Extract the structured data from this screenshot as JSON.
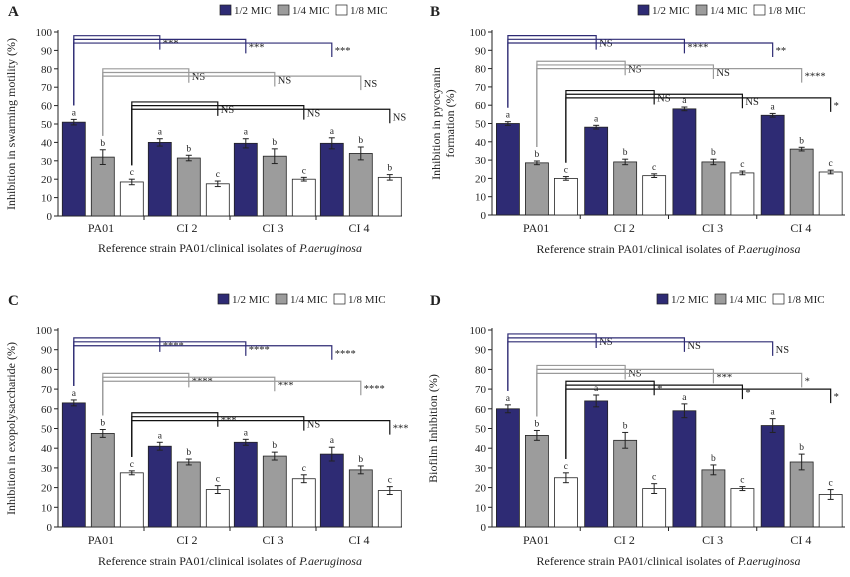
{
  "colors": {
    "half_mic": "#2e2b74",
    "quarter_mic": "#9c9c9c",
    "eighth_mic": "#ffffff",
    "bar_stroke": "#222222",
    "bracket_blue": "#2e2b74",
    "bracket_gray": "#9a9a9a",
    "bracket_black": "#111111"
  },
  "chart_data": [
    {
      "panel": "A",
      "type": "bar",
      "ylabel": "Inhibition in swarming motility (%)",
      "xlabel": "Reference strain PA01/clinical isolates of P.aeruginosa",
      "xlabel_main": "Reference strain PA01/clinical isolates of ",
      "xlabel_italic": "P.aeruginosa",
      "ylim": [
        0,
        100
      ],
      "yticks": [
        "0",
        "10",
        "20",
        "30",
        "40",
        "50",
        "60",
        "70",
        "80",
        "90",
        "100"
      ],
      "categories": [
        "PA01",
        "CI 2",
        "CI 3",
        "CI 4"
      ],
      "legend": [
        "1/2 MIC",
        "1/4 MIC",
        "1/8 MIC"
      ],
      "series": [
        {
          "name": "1/2 MIC",
          "values": [
            51,
            40,
            39.5,
            39.5
          ],
          "errors": [
            1.5,
            2,
            2.5,
            3
          ],
          "letters": [
            "a",
            "a",
            "a",
            "a"
          ]
        },
        {
          "name": "1/4 MIC",
          "values": [
            32,
            31.5,
            32.5,
            34
          ],
          "errors": [
            4,
            1.5,
            4,
            3.5
          ],
          "letters": [
            "b",
            "b",
            "b",
            "b"
          ]
        },
        {
          "name": "1/8 MIC",
          "values": [
            18.5,
            17.5,
            20,
            21
          ],
          "errors": [
            1.5,
            1.5,
            1,
            1.5
          ],
          "letters": [
            "c",
            "c",
            "c",
            "b"
          ]
        }
      ],
      "brackets": [
        {
          "series": 0,
          "from": 0,
          "to": 1,
          "level": 98,
          "label": "***"
        },
        {
          "series": 0,
          "from": 0,
          "to": 2,
          "level": 96,
          "label": "***"
        },
        {
          "series": 0,
          "from": 0,
          "to": 3,
          "level": 94,
          "label": "***"
        },
        {
          "series": 1,
          "from": 0,
          "to": 1,
          "level": 80,
          "label": "NS"
        },
        {
          "series": 1,
          "from": 0,
          "to": 2,
          "level": 78,
          "label": "NS"
        },
        {
          "series": 1,
          "from": 0,
          "to": 3,
          "level": 76,
          "label": "NS"
        },
        {
          "series": 2,
          "from": 0,
          "to": 1,
          "level": 62,
          "label": "NS"
        },
        {
          "series": 2,
          "from": 0,
          "to": 2,
          "level": 60,
          "label": "NS"
        },
        {
          "series": 2,
          "from": 0,
          "to": 3,
          "level": 58,
          "label": "NS"
        }
      ]
    },
    {
      "panel": "B",
      "type": "bar",
      "ylabel": "Inhibition in pyocyanin formation (%)",
      "ylabel_lines": [
        "Inhibition in pyocyanin",
        "formation (%)"
      ],
      "xlabel": "Reference strain PA01/clinical isolates of P.aeruginosa",
      "xlabel_main": "Reference strain PA01/clinical isolates of ",
      "xlabel_italic": "P.aeruginosa",
      "ylim": [
        0,
        100
      ],
      "yticks": [
        "0",
        "10",
        "20",
        "30",
        "40",
        "50",
        "60",
        "70",
        "80",
        "90",
        "100"
      ],
      "categories": [
        "PA01",
        "CI 2",
        "CI 3",
        "CI 4"
      ],
      "legend": [
        "1/2 MIC",
        "1/4 MIC",
        "1/8 MIC"
      ],
      "series": [
        {
          "name": "1/2 MIC",
          "values": [
            50,
            48,
            58,
            54.5
          ],
          "errors": [
            1,
            1,
            1,
            1
          ],
          "letters": [
            "a",
            "a",
            "a",
            "a"
          ]
        },
        {
          "name": "1/4 MIC",
          "values": [
            28.5,
            29,
            29,
            36
          ],
          "errors": [
            1,
            1.5,
            1.5,
            1
          ],
          "letters": [
            "b",
            "b",
            "b",
            "b"
          ]
        },
        {
          "name": "1/8 MIC",
          "values": [
            20,
            21.5,
            23,
            23.5
          ],
          "errors": [
            1,
            1,
            1,
            1
          ],
          "letters": [
            "c",
            "c",
            "c",
            "c"
          ]
        }
      ],
      "brackets": [
        {
          "series": 0,
          "from": 0,
          "to": 1,
          "level": 98,
          "label": "NS"
        },
        {
          "series": 0,
          "from": 0,
          "to": 2,
          "level": 96,
          "label": "****"
        },
        {
          "series": 0,
          "from": 0,
          "to": 3,
          "level": 94,
          "label": "**"
        },
        {
          "series": 1,
          "from": 0,
          "to": 1,
          "level": 84,
          "label": "NS"
        },
        {
          "series": 1,
          "from": 0,
          "to": 2,
          "level": 82,
          "label": "NS"
        },
        {
          "series": 1,
          "from": 0,
          "to": 3,
          "level": 80,
          "label": "****"
        },
        {
          "series": 2,
          "from": 0,
          "to": 1,
          "level": 68,
          "label": "NS"
        },
        {
          "series": 2,
          "from": 0,
          "to": 2,
          "level": 66,
          "label": "NS"
        },
        {
          "series": 2,
          "from": 0,
          "to": 3,
          "level": 64,
          "label": "*"
        }
      ]
    },
    {
      "panel": "C",
      "type": "bar",
      "ylabel": "Inhibition in exopolysaccharide (%)",
      "xlabel": "Reference strain PA01/clinical isolates of P.aeruginosa",
      "xlabel_main": "Reference strain PA01/clinical isolates of ",
      "xlabel_italic": "P.aeruginosa",
      "ylim": [
        0,
        100
      ],
      "yticks": [
        "0",
        "10",
        "20",
        "30",
        "40",
        "50",
        "60",
        "70",
        "80",
        "90",
        "100"
      ],
      "categories": [
        "PA01",
        "CI 2",
        "CI 3",
        "CI 4"
      ],
      "legend": [
        "1/2 MIC",
        "1/4 MIC",
        "1/8 MIC"
      ],
      "series": [
        {
          "name": "1/2 MIC",
          "values": [
            63,
            41,
            43,
            37
          ],
          "errors": [
            1.5,
            2,
            1.5,
            3.5
          ],
          "letters": [
            "a",
            "a",
            "a",
            "a"
          ]
        },
        {
          "name": "1/4 MIC",
          "values": [
            47.5,
            33,
            36,
            29
          ],
          "errors": [
            2,
            1.5,
            2,
            2
          ],
          "letters": [
            "b",
            "b",
            "b",
            "b"
          ]
        },
        {
          "name": "1/8 MIC",
          "values": [
            27.5,
            19,
            24.5,
            18.5
          ],
          "errors": [
            1,
            2,
            2,
            2
          ],
          "letters": [
            "c",
            "c",
            "c",
            "c"
          ]
        }
      ],
      "brackets": [
        {
          "series": 0,
          "from": 0,
          "to": 1,
          "level": 96,
          "label": "****"
        },
        {
          "series": 0,
          "from": 0,
          "to": 2,
          "level": 94,
          "label": "****"
        },
        {
          "series": 0,
          "from": 0,
          "to": 3,
          "level": 92,
          "label": "****"
        },
        {
          "series": 1,
          "from": 0,
          "to": 1,
          "level": 78,
          "label": "****"
        },
        {
          "series": 1,
          "from": 0,
          "to": 2,
          "level": 76,
          "label": "***"
        },
        {
          "series": 1,
          "from": 0,
          "to": 3,
          "level": 74,
          "label": "****"
        },
        {
          "series": 2,
          "from": 0,
          "to": 1,
          "level": 58,
          "label": "***"
        },
        {
          "series": 2,
          "from": 0,
          "to": 2,
          "level": 56,
          "label": "NS"
        },
        {
          "series": 2,
          "from": 0,
          "to": 3,
          "level": 54,
          "label": "***"
        }
      ]
    },
    {
      "panel": "D",
      "type": "bar",
      "ylabel": "Biofilm Inhibition (%)",
      "xlabel": "Reference strain PA01/clinical isolates of P.aeruginosa",
      "xlabel_main": "Reference strain PA01/clinical isolates of ",
      "xlabel_italic": "P.aeruginosa",
      "ylim": [
        0,
        100
      ],
      "yticks": [
        "0",
        "10",
        "20",
        "30",
        "40",
        "50",
        "60",
        "70",
        "80",
        "90",
        "100"
      ],
      "categories": [
        "PA01",
        "CI 2",
        "CI 3",
        "CI 4"
      ],
      "legend": [
        "1/2 MIC",
        "1/4 MIC",
        "1/8 MIC"
      ],
      "series": [
        {
          "name": "1/2 MIC",
          "values": [
            60,
            64,
            59,
            51.5
          ],
          "errors": [
            2,
            3,
            3.5,
            3.5
          ],
          "letters": [
            "a",
            "a",
            "a",
            "a"
          ]
        },
        {
          "name": "1/4 MIC",
          "values": [
            46.5,
            44,
            29,
            33
          ],
          "errors": [
            2.5,
            4,
            2.5,
            4
          ],
          "letters": [
            "b",
            "b",
            "b",
            "b"
          ]
        },
        {
          "name": "1/8 MIC",
          "values": [
            25,
            19.5,
            19.5,
            16.5
          ],
          "errors": [
            2.5,
            2.5,
            1,
            2.5
          ],
          "letters": [
            "c",
            "c",
            "c",
            "c"
          ]
        }
      ],
      "brackets": [
        {
          "series": 0,
          "from": 0,
          "to": 1,
          "level": 98,
          "label": "NS"
        },
        {
          "series": 0,
          "from": 0,
          "to": 2,
          "level": 96,
          "label": "NS"
        },
        {
          "series": 0,
          "from": 0,
          "to": 3,
          "level": 94,
          "label": "NS"
        },
        {
          "series": 1,
          "from": 0,
          "to": 1,
          "level": 82,
          "label": "NS"
        },
        {
          "series": 1,
          "from": 0,
          "to": 2,
          "level": 80,
          "label": "***"
        },
        {
          "series": 1,
          "from": 0,
          "to": 3,
          "level": 78,
          "label": "*"
        },
        {
          "series": 2,
          "from": 0,
          "to": 1,
          "level": 74,
          "label": "*"
        },
        {
          "series": 2,
          "from": 0,
          "to": 2,
          "level": 72,
          "label": "*"
        },
        {
          "series": 2,
          "from": 0,
          "to": 3,
          "level": 70,
          "label": "*"
        }
      ]
    }
  ]
}
